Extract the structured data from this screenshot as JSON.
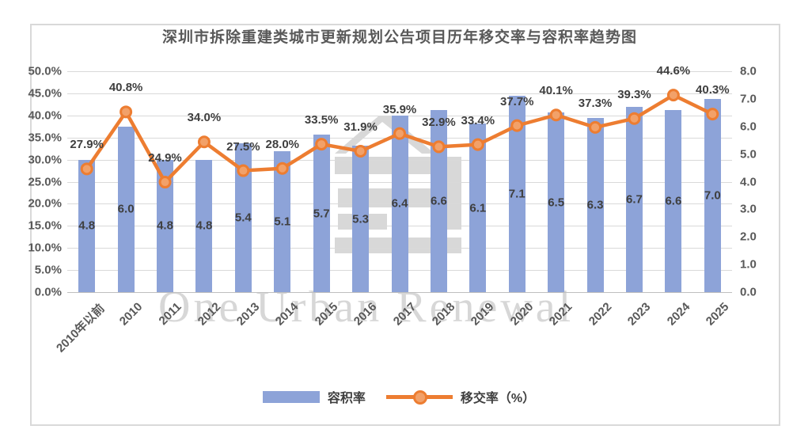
{
  "chart_data": {
    "type": "combo-bar-line",
    "title": "深圳市拆除重建类城市更新规划公告项目历年移交率与容积率趋势图",
    "categories": [
      "2010年以前",
      "2010",
      "2011",
      "2012",
      "2013",
      "2014",
      "2015",
      "2016",
      "2017",
      "2018",
      "2019",
      "2020",
      "2021",
      "2022",
      "2023",
      "2024",
      "2025"
    ],
    "series": [
      {
        "name": "容积率",
        "type": "bar",
        "axis": "right",
        "color": "#8DA3D8",
        "values": [
          4.8,
          6.0,
          4.8,
          4.8,
          5.4,
          5.1,
          5.7,
          5.3,
          6.4,
          6.6,
          6.1,
          7.1,
          6.5,
          6.3,
          6.7,
          6.6,
          7.0
        ],
        "labels": [
          "4.8",
          "6.0",
          "4.8",
          "4.8",
          "5.4",
          "5.1",
          "5.7",
          "5.3",
          "6.4",
          "6.6",
          "6.1",
          "7.1",
          "6.5",
          "6.3",
          "6.7",
          "6.6",
          "7.0"
        ]
      },
      {
        "name": "移交率（%）",
        "type": "line",
        "axis": "left",
        "color": "#ED7D31",
        "marker_fill": "#F2A169",
        "values": [
          27.9,
          40.8,
          24.9,
          34.0,
          27.5,
          28.0,
          33.5,
          31.9,
          35.9,
          32.9,
          33.4,
          37.7,
          40.1,
          37.3,
          39.3,
          44.6,
          40.3
        ],
        "labels": [
          "27.9%",
          "40.8%",
          "24.9%",
          "34.0%",
          "27.5%",
          "28.0%",
          "33.5%",
          "31.9%",
          "35.9%",
          "32.9%",
          "33.4%",
          "37.7%",
          "40.1%",
          "37.3%",
          "39.3%",
          "44.6%",
          "40.3%"
        ]
      }
    ],
    "left_axis": {
      "min": 0,
      "max": 50,
      "step": 5,
      "tick_labels": [
        "0.0%",
        "5.0%",
        "10.0%",
        "15.0%",
        "20.0%",
        "25.0%",
        "30.0%",
        "35.0%",
        "40.0%",
        "45.0%",
        "50.0%"
      ]
    },
    "right_axis": {
      "min": 0,
      "max": 8,
      "step": 1,
      "tick_labels": [
        "0.0",
        "1.0",
        "2.0",
        "3.0",
        "4.0",
        "5.0",
        "6.0",
        "7.0",
        "8.0"
      ]
    },
    "legend": [
      {
        "label": "容积率",
        "type": "bar"
      },
      {
        "label": "移交率（%）",
        "type": "line"
      }
    ],
    "grid": true,
    "legend_position": "bottom",
    "watermark_text": "One Urban Renewal"
  }
}
